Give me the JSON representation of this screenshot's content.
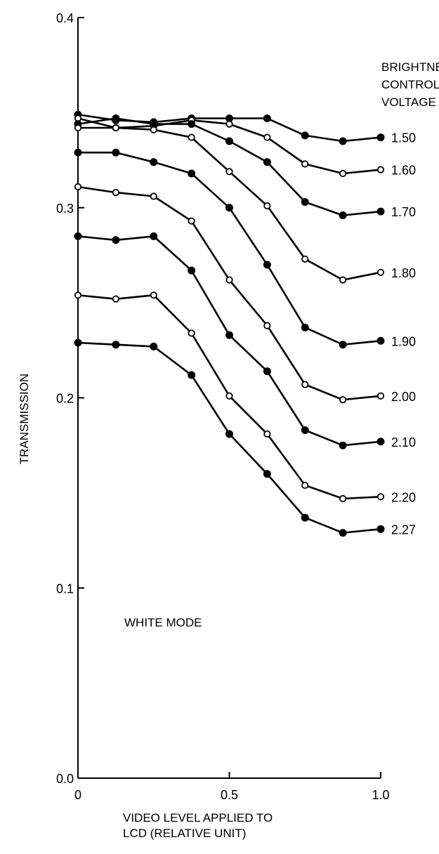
{
  "chart_data": {
    "type": "line",
    "title": "",
    "xlabel": [
      "VIDEO LEVEL APPLIED TO",
      "LCD (RELATIVE UNIT)"
    ],
    "ylabel": "TRANSMISSION",
    "xlim": [
      0,
      1
    ],
    "ylim": [
      0,
      0.4
    ],
    "x_ticks": [
      "0",
      "0.5",
      "1.0"
    ],
    "y_ticks": [
      "0.0",
      "0.1",
      "0.2",
      "0.3",
      "0.4"
    ],
    "legend_title": [
      "BRIGHTNESS",
      "CONTROL",
      "VOLTAGE"
    ],
    "annotation": "WHITE MODE",
    "grid": false,
    "x": [
      0,
      0.125,
      0.25,
      0.375,
      0.5,
      0.625,
      0.75,
      0.875,
      1.0
    ],
    "series": [
      {
        "name": "1.50",
        "marker": "filled",
        "values": [
          0.349,
          0.346,
          0.345,
          0.347,
          0.347,
          0.347,
          0.338,
          0.335,
          0.337
        ]
      },
      {
        "name": "1.60",
        "marker": "open",
        "values": [
          0.347,
          0.342,
          0.343,
          0.346,
          0.344,
          0.337,
          0.323,
          0.318,
          0.32
        ]
      },
      {
        "name": "1.70",
        "marker": "filled",
        "values": [
          0.344,
          0.347,
          0.344,
          0.344,
          0.335,
          0.324,
          0.303,
          0.296,
          0.298
        ]
      },
      {
        "name": "1.80",
        "marker": "open",
        "values": [
          0.342,
          0.342,
          0.341,
          0.337,
          0.319,
          0.301,
          0.273,
          0.262,
          0.266
        ]
      },
      {
        "name": "1.90",
        "marker": "filled",
        "values": [
          0.329,
          0.329,
          0.324,
          0.318,
          0.3,
          0.27,
          0.237,
          0.228,
          0.23
        ]
      },
      {
        "name": "2.00",
        "marker": "open",
        "values": [
          0.311,
          0.308,
          0.306,
          0.293,
          0.262,
          0.238,
          0.207,
          0.199,
          0.201
        ]
      },
      {
        "name": "2.10",
        "marker": "filled",
        "values": [
          0.285,
          0.283,
          0.285,
          0.267,
          0.233,
          0.214,
          0.183,
          0.175,
          0.177
        ]
      },
      {
        "name": "2.20",
        "marker": "open",
        "values": [
          0.254,
          0.252,
          0.254,
          0.234,
          0.201,
          0.181,
          0.154,
          0.147,
          0.148
        ]
      },
      {
        "name": "2.27",
        "marker": "filled",
        "values": [
          0.229,
          0.228,
          0.227,
          0.212,
          0.181,
          0.16,
          0.137,
          0.129,
          0.131
        ]
      }
    ]
  }
}
